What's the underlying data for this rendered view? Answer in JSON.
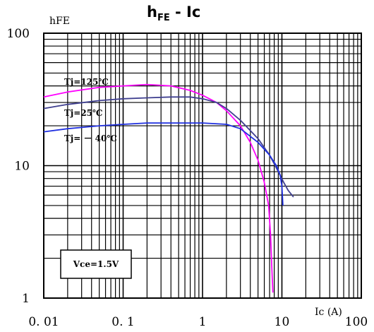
{
  "chart_data": {
    "type": "line",
    "title": {
      "main": "h",
      "sub": "FE",
      "rest": " - Ic"
    },
    "ylabel": "hFE",
    "xlabel": "Ic (A)",
    "x_scale": "log",
    "y_scale": "log",
    "xlim": [
      0.01,
      100
    ],
    "ylim": [
      1,
      100
    ],
    "x_ticks": [
      {
        "value": 0.01,
        "label": "0. 01"
      },
      {
        "value": 0.1,
        "label": "0. 1"
      },
      {
        "value": 1,
        "label": "1"
      },
      {
        "value": 10,
        "label": "10"
      },
      {
        "value": 100,
        "label": "100"
      }
    ],
    "y_ticks": [
      {
        "value": 100,
        "label": "100"
      },
      {
        "value": 10,
        "label": "10"
      },
      {
        "value": 1,
        "label": "1"
      }
    ],
    "grid": true,
    "condition_label": "Vce=1.5V",
    "series": [
      {
        "name": "Tj=125℃",
        "color": "#ff00ff",
        "points": [
          [
            0.01,
            33
          ],
          [
            0.02,
            36
          ],
          [
            0.05,
            39
          ],
          [
            0.1,
            40
          ],
          [
            0.2,
            41
          ],
          [
            0.4,
            40
          ],
          [
            0.7,
            37
          ],
          [
            1,
            34
          ],
          [
            1.5,
            30
          ],
          [
            2,
            26
          ],
          [
            3,
            20
          ],
          [
            4,
            15
          ],
          [
            5,
            11
          ],
          [
            6,
            7.5
          ],
          [
            6.8,
            5
          ],
          [
            7.2,
            3
          ],
          [
            7.5,
            1.6
          ],
          [
            7.7,
            1.1
          ]
        ]
      },
      {
        "name": "Tj=25℃",
        "color": "#404090",
        "points": [
          [
            0.01,
            27
          ],
          [
            0.02,
            29
          ],
          [
            0.05,
            31
          ],
          [
            0.1,
            32
          ],
          [
            0.2,
            32.5
          ],
          [
            0.4,
            33
          ],
          [
            0.7,
            33
          ],
          [
            1,
            32
          ],
          [
            1.5,
            30
          ],
          [
            2,
            27
          ],
          [
            3,
            22
          ],
          [
            5,
            16
          ],
          [
            7,
            12
          ],
          [
            9,
            9
          ],
          [
            10.5,
            7.5
          ],
          [
            12,
            6.5
          ],
          [
            14,
            5.8
          ]
        ]
      },
      {
        "name": "Tj= － 40℃",
        "color": "#2030e0",
        "points": [
          [
            0.01,
            18
          ],
          [
            0.02,
            19
          ],
          [
            0.05,
            20
          ],
          [
            0.1,
            20.5
          ],
          [
            0.2,
            21
          ],
          [
            0.5,
            21
          ],
          [
            1,
            21
          ],
          [
            2,
            20.5
          ],
          [
            3,
            19
          ],
          [
            5,
            15
          ],
          [
            7,
            12
          ],
          [
            8.5,
            10
          ],
          [
            9.5,
            8.5
          ],
          [
            10,
            7
          ],
          [
            10.3,
            5
          ]
        ]
      }
    ]
  }
}
